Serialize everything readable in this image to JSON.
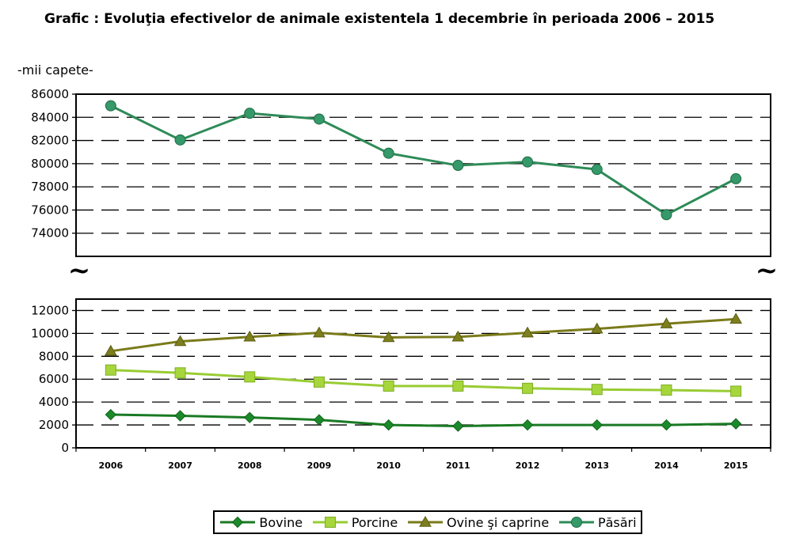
{
  "title": "Grafic : Evoluţia efectivelor de animale existentela 1 decembrie în perioada 2006 – 2015",
  "unit_label": "-mii capete-",
  "break_symbol": "~",
  "colors": {
    "Bovine": "#1a7a23",
    "Porcine": "#99cc33",
    "Ovine şi caprine": "#7a7a1a",
    "Păsări": "#2e8b57",
    "Bovine_marker": "#1a8a2a",
    "Porcine_marker": "#a6d63c",
    "Ovine şi caprine_marker": "#7d7f1e",
    "Păsări_marker": "#35996a"
  },
  "chart_data": {
    "type": "line",
    "title": "Grafic : Evoluţia efectivelor de animale existentela 1 decembrie în perioada 2006 – 2015",
    "ylabel": "-mii capete-",
    "xlabel": "",
    "x": [
      "2006",
      "2007",
      "2008",
      "2009",
      "2010",
      "2011",
      "2012",
      "2013",
      "2014",
      "2015"
    ],
    "grid": true,
    "legend_position": "bottom",
    "panels": [
      {
        "name": "upper",
        "ylim": [
          72000,
          86000
        ],
        "yticks": [
          74000,
          76000,
          78000,
          80000,
          82000,
          84000,
          86000
        ],
        "series": [
          "Păsări"
        ]
      },
      {
        "name": "lower",
        "ylim": [
          0,
          13000
        ],
        "yticks": [
          0,
          2000,
          4000,
          6000,
          8000,
          10000,
          12000
        ],
        "series": [
          "Bovine",
          "Porcine",
          "Ovine şi caprine"
        ]
      }
    ],
    "series": [
      {
        "name": "Bovine",
        "marker": "diamond",
        "values": [
          2900,
          2800,
          2650,
          2450,
          2000,
          1900,
          2000,
          2000,
          2000,
          2100
        ]
      },
      {
        "name": "Porcine",
        "marker": "square",
        "values": [
          6800,
          6550,
          6200,
          5750,
          5400,
          5400,
          5200,
          5100,
          5050,
          4950
        ]
      },
      {
        "name": "Ovine şi caprine",
        "marker": "triangle",
        "values": [
          8450,
          9300,
          9700,
          10050,
          9650,
          9700,
          10050,
          10400,
          10850,
          11250
        ]
      },
      {
        "name": "Păsări",
        "marker": "circle",
        "values": [
          85000,
          82050,
          84350,
          83850,
          80900,
          79850,
          80150,
          79500,
          75600,
          78700
        ]
      }
    ]
  }
}
